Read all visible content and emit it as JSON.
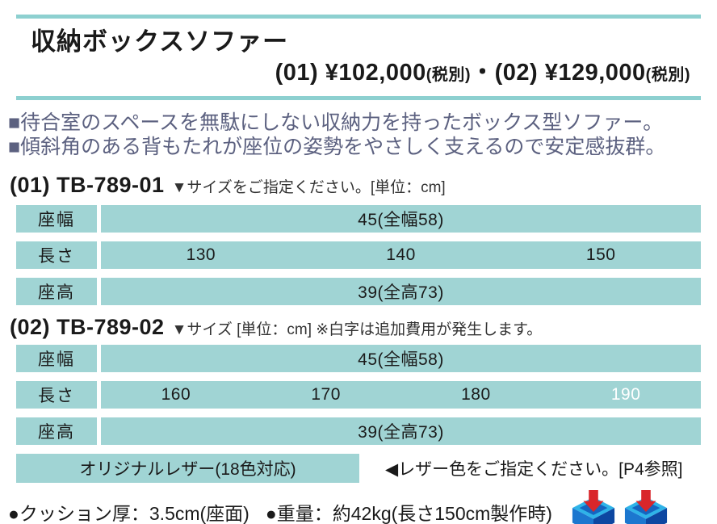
{
  "header": {
    "title": "収納ボックスソファー",
    "prices": [
      {
        "code": "(01)",
        "price": "¥102,000",
        "tax": "(税別)"
      },
      {
        "code": "(02)",
        "price": "¥129,000",
        "tax": "(税別)"
      }
    ],
    "separator": "・"
  },
  "features": [
    "■待合室のスペースを無駄にしない収納力を持ったボックス型ソファー。",
    "■傾斜角のある背もたれが座位の姿勢をやさしく支えるので安定感抜群。"
  ],
  "sections": [
    {
      "code": "(01) TB-789-01",
      "note": "▼サイズをご指定ください。[単位：cm]",
      "rows": [
        {
          "label": "座幅",
          "values": [
            "45(全幅58)"
          ]
        },
        {
          "label": "長さ",
          "values": [
            "130",
            "140",
            "150"
          ]
        },
        {
          "label": "座高",
          "values": [
            "39(全高73)"
          ]
        }
      ]
    },
    {
      "code": "(02) TB-789-02",
      "note": "▼サイズ [単位：cm] ※白字は追加費用が発生します。",
      "rows": [
        {
          "label": "座幅",
          "values": [
            "45(全幅58)"
          ]
        },
        {
          "label": "長さ",
          "values": [
            "160",
            "170",
            "180",
            {
              "text": "190",
              "white": true
            }
          ]
        },
        {
          "label": "座高",
          "values": [
            "39(全高73)"
          ]
        }
      ]
    }
  ],
  "leather": {
    "label": "オリジナルレザー(18色対応)",
    "note": "◀レザー色をご指定ください。[P4参照]"
  },
  "specs": {
    "items": [
      "●クッション厚：3.5cm(座面)",
      "●重量：約42kg(長さ150cm製作時)"
    ],
    "icons": [
      "storage-box-icon",
      "storage-box-icon"
    ]
  },
  "colors": {
    "teal_fill": "#a0d4d4",
    "teal_bar": "#8dd0d0",
    "feature_text": "#5c6180",
    "white_value": "#ffffff",
    "icon_blue_dark": "#0d47a1",
    "icon_blue_mid": "#1c77cf",
    "icon_blue_light": "#2fb3e8",
    "icon_arrow_red": "#d9262b"
  }
}
